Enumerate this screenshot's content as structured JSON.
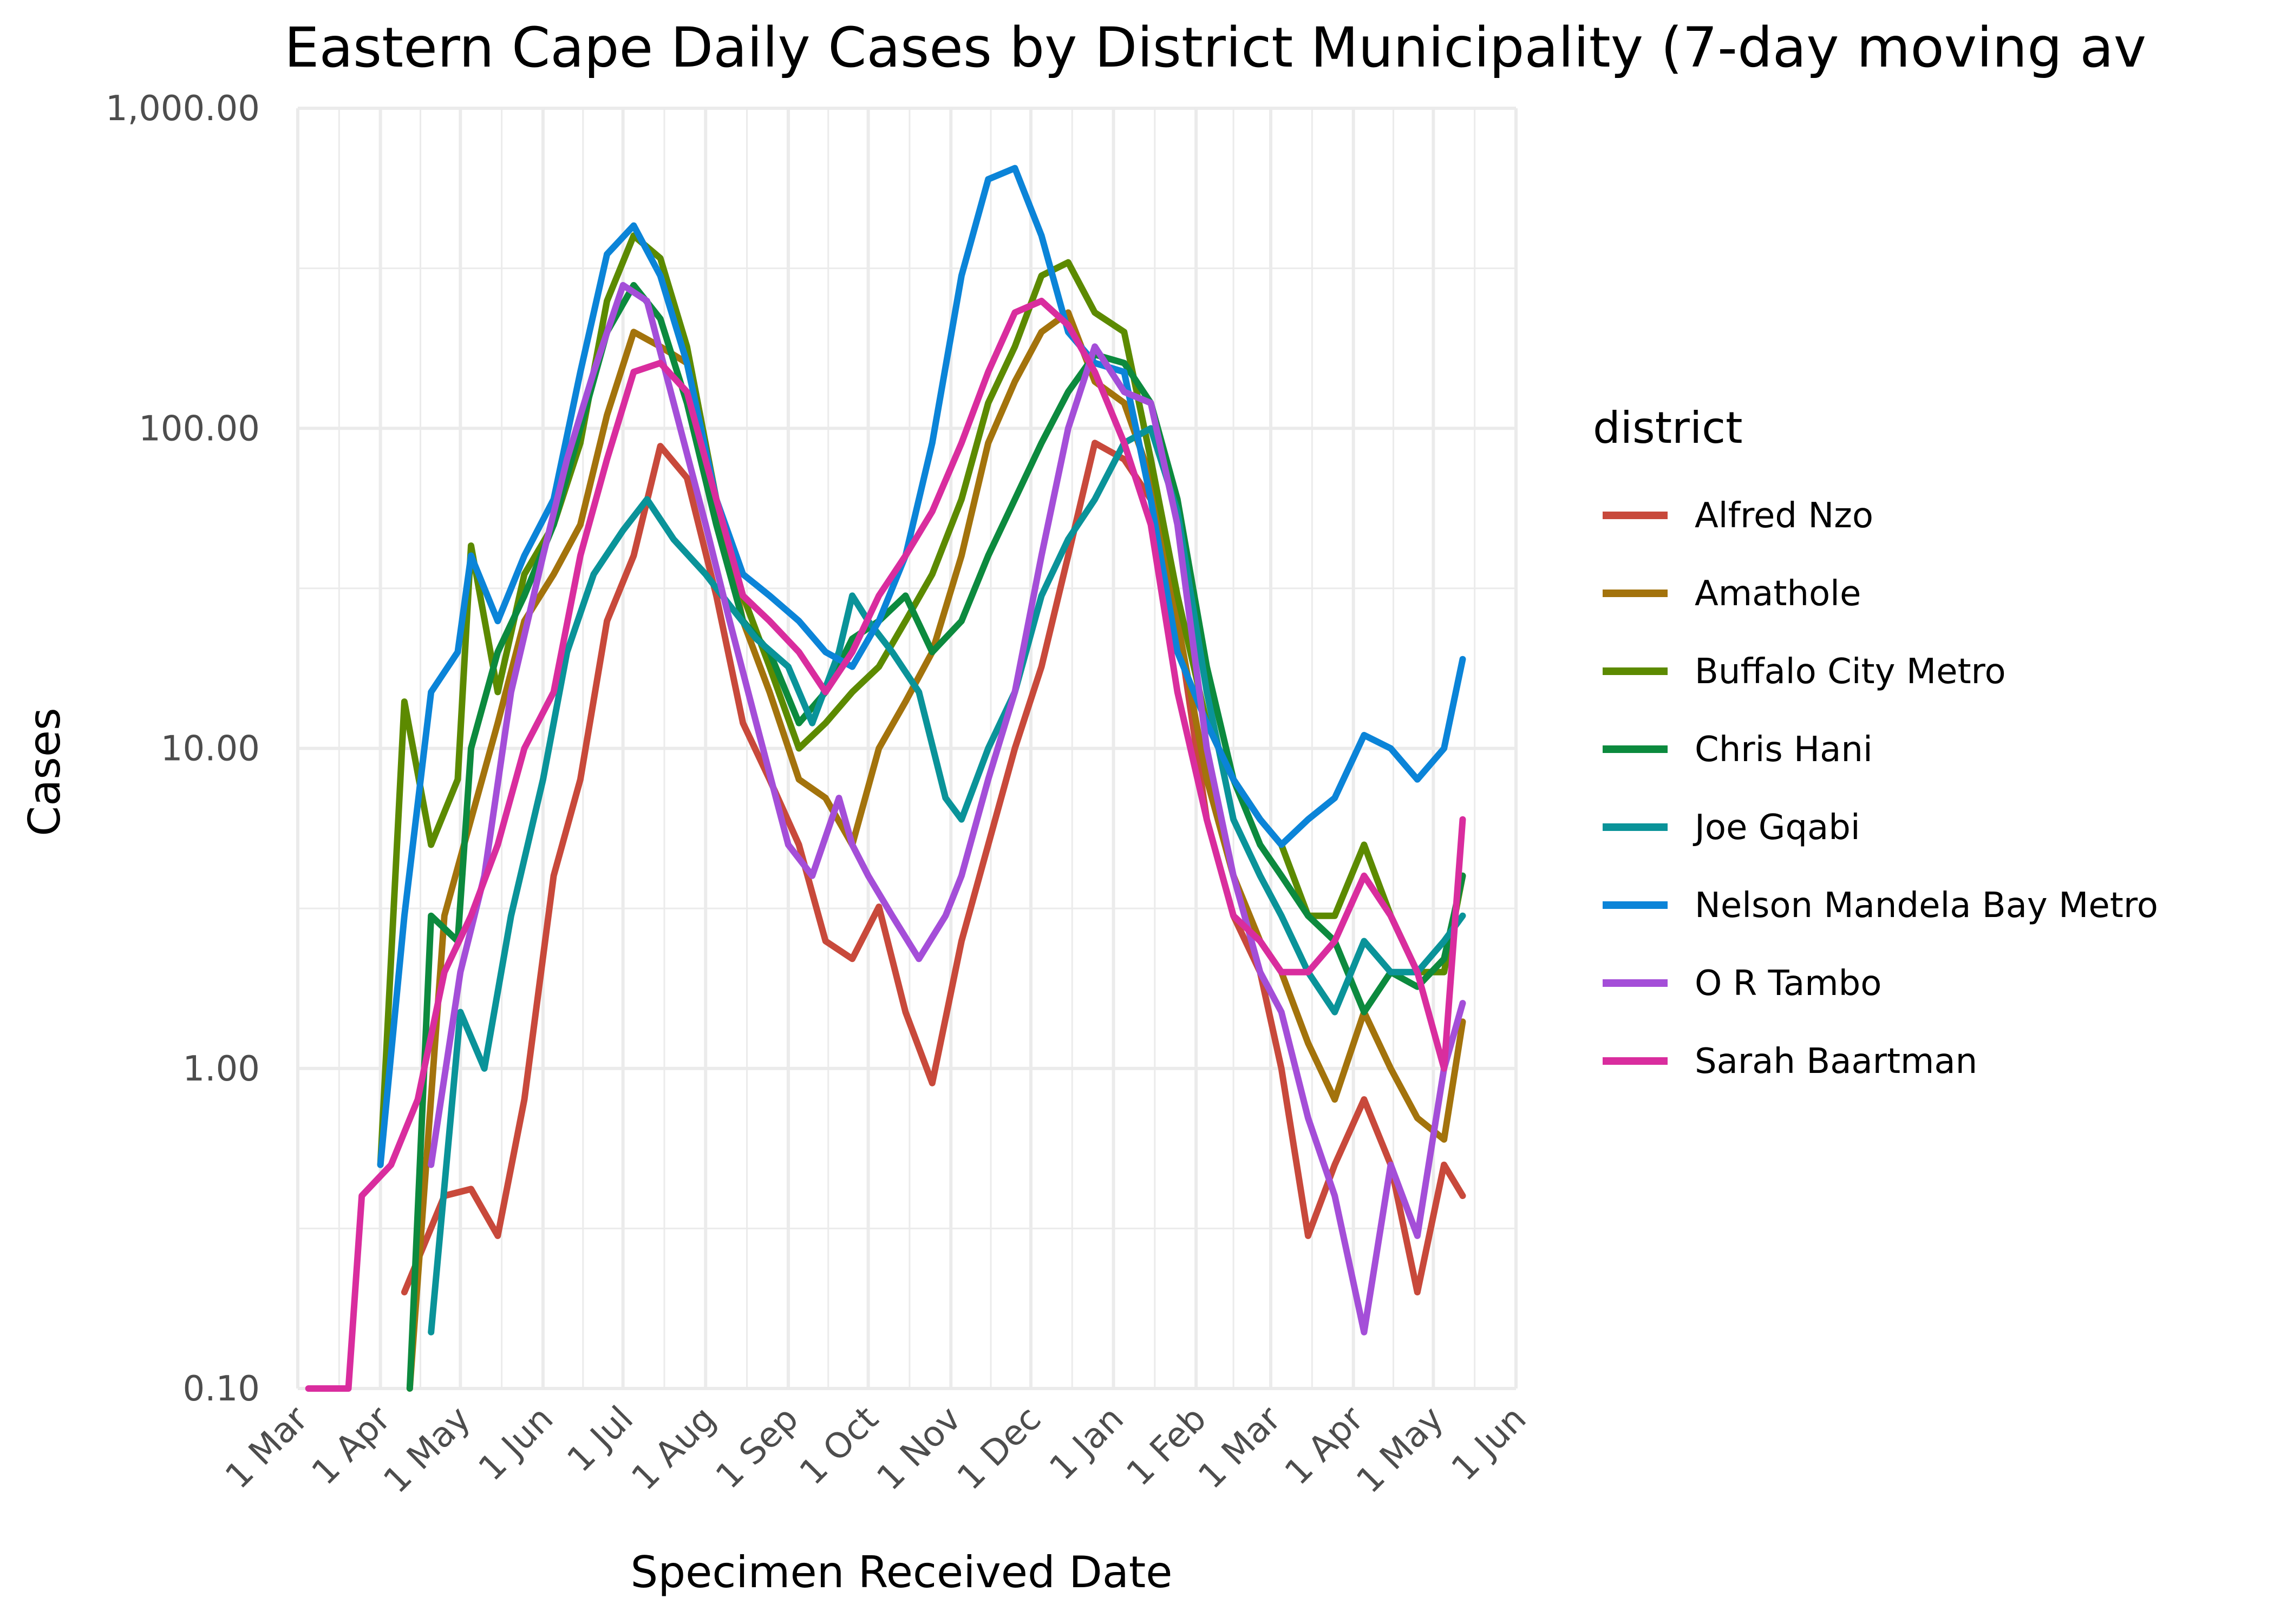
{
  "chart_data": {
    "type": "line",
    "title": "Eastern Cape Daily Cases by District Municipality (7-day moving av",
    "xlabel": "Specimen Received Date",
    "ylabel": "Cases",
    "y_scale": "log10",
    "ylim": [
      0.1,
      1000
    ],
    "x_start": "2020-03-01",
    "x_end": "2021-06-01",
    "x_ticks": [
      "1 Mar",
      "1 Apr",
      "1 May",
      "1 Jun",
      "1 Jul",
      "1 Aug",
      "1 Sep",
      "1 Oct",
      "1 Nov",
      "1 Dec",
      "1 Jan",
      "1 Feb",
      "1 Mar",
      "1 Apr",
      "1 May",
      "1 Jun"
    ],
    "x_tick_dates": [
      "2020-03-01",
      "2020-04-01",
      "2020-05-01",
      "2020-06-01",
      "2020-07-01",
      "2020-08-01",
      "2020-09-01",
      "2020-10-01",
      "2020-11-01",
      "2020-12-01",
      "2021-01-01",
      "2021-02-01",
      "2021-03-01",
      "2021-04-01",
      "2021-05-01",
      "2021-06-01"
    ],
    "y_ticks": [
      "0.10",
      "1.00",
      "10.00",
      "100.00",
      "1,000.00"
    ],
    "y_tick_values": [
      0.1,
      1,
      10,
      100,
      1000
    ],
    "grid": true,
    "legend_title": "district",
    "legend_position": "right",
    "series": [
      {
        "name": "Alfred Nzo",
        "color": "#c8493b",
        "x": [
          "2020-04-10",
          "2020-04-25",
          "2020-05-05",
          "2020-05-15",
          "2020-05-25",
          "2020-06-05",
          "2020-06-15",
          "2020-06-25",
          "2020-07-05",
          "2020-07-15",
          "2020-07-25",
          "2020-08-05",
          "2020-08-15",
          "2020-08-25",
          "2020-09-05",
          "2020-09-15",
          "2020-09-25",
          "2020-10-05",
          "2020-10-15",
          "2020-10-25",
          "2020-11-05",
          "2020-11-15",
          "2020-11-25",
          "2020-12-05",
          "2020-12-15",
          "2020-12-25",
          "2021-01-05",
          "2021-01-15",
          "2021-01-25",
          "2021-02-05",
          "2021-02-15",
          "2021-02-25",
          "2021-03-05",
          "2021-03-15",
          "2021-03-25",
          "2021-04-05",
          "2021-04-15",
          "2021-04-25",
          "2021-05-05",
          "2021-05-12"
        ],
        "y": [
          0.2,
          0.4,
          0.42,
          0.3,
          0.8,
          4,
          8,
          25,
          40,
          88,
          70,
          30,
          12,
          8,
          5,
          2.5,
          2.2,
          3.2,
          1.5,
          0.9,
          2.5,
          5,
          10,
          18,
          40,
          90,
          80,
          60,
          25,
          6,
          3,
          2,
          1,
          0.3,
          0.5,
          0.8,
          0.5,
          0.2,
          0.5,
          0.4
        ]
      },
      {
        "name": "Amathole",
        "color": "#a3730c",
        "x": [
          "2020-04-12",
          "2020-04-25",
          "2020-05-05",
          "2020-05-15",
          "2020-05-25",
          "2020-06-05",
          "2020-06-15",
          "2020-06-25",
          "2020-07-05",
          "2020-07-15",
          "2020-07-25",
          "2020-08-05",
          "2020-08-15",
          "2020-08-25",
          "2020-09-05",
          "2020-09-15",
          "2020-09-25",
          "2020-10-05",
          "2020-10-15",
          "2020-10-25",
          "2020-11-05",
          "2020-11-15",
          "2020-11-25",
          "2020-12-05",
          "2020-12-15",
          "2020-12-25",
          "2021-01-05",
          "2021-01-15",
          "2021-01-25",
          "2021-02-05",
          "2021-02-15",
          "2021-02-25",
          "2021-03-05",
          "2021-03-15",
          "2021-03-25",
          "2021-04-05",
          "2021-04-15",
          "2021-04-25",
          "2021-05-05",
          "2021-05-12"
        ],
        "y": [
          0.1,
          3,
          6,
          12,
          25,
          35,
          50,
          110,
          200,
          180,
          160,
          60,
          25,
          15,
          8,
          7,
          5,
          10,
          14,
          20,
          40,
          90,
          140,
          200,
          230,
          140,
          120,
          70,
          25,
          8,
          4,
          2.5,
          2,
          1.2,
          0.8,
          1.5,
          1,
          0.7,
          0.6,
          1.4
        ]
      },
      {
        "name": "Buffalo City Metro",
        "color": "#5c8a00",
        "x": [
          "2020-04-01",
          "2020-04-10",
          "2020-04-20",
          "2020-04-30",
          "2020-05-05",
          "2020-05-15",
          "2020-05-25",
          "2020-06-05",
          "2020-06-15",
          "2020-06-25",
          "2020-07-05",
          "2020-07-15",
          "2020-07-25",
          "2020-08-05",
          "2020-08-15",
          "2020-08-25",
          "2020-09-05",
          "2020-09-15",
          "2020-09-25",
          "2020-10-05",
          "2020-10-15",
          "2020-10-25",
          "2020-11-05",
          "2020-11-15",
          "2020-11-25",
          "2020-12-05",
          "2020-12-15",
          "2020-12-25",
          "2021-01-05",
          "2021-01-15",
          "2021-01-25",
          "2021-02-05",
          "2021-02-15",
          "2021-02-25",
          "2021-03-05",
          "2021-03-15",
          "2021-03-25",
          "2021-04-05",
          "2021-04-15",
          "2021-04-25",
          "2021-05-05",
          "2021-05-12"
        ],
        "y": [
          0.5,
          14,
          5,
          8,
          43,
          15,
          35,
          50,
          90,
          250,
          400,
          340,
          180,
          60,
          30,
          18,
          10,
          12,
          15,
          18,
          25,
          35,
          60,
          120,
          180,
          300,
          330,
          230,
          200,
          80,
          30,
          12,
          8,
          6,
          5,
          3,
          3,
          5,
          3,
          2,
          2,
          4
        ]
      },
      {
        "name": "Chris Hani",
        "color": "#0c8a3e",
        "x": [
          "2020-04-12",
          "2020-04-20",
          "2020-04-30",
          "2020-05-05",
          "2020-05-15",
          "2020-05-25",
          "2020-06-05",
          "2020-06-15",
          "2020-06-25",
          "2020-07-05",
          "2020-07-15",
          "2020-07-25",
          "2020-08-05",
          "2020-08-15",
          "2020-08-25",
          "2020-09-05",
          "2020-09-15",
          "2020-09-25",
          "2020-10-05",
          "2020-10-15",
          "2020-10-25",
          "2020-11-05",
          "2020-11-15",
          "2020-11-25",
          "2020-12-05",
          "2020-12-15",
          "2020-12-25",
          "2021-01-05",
          "2021-01-15",
          "2021-01-25",
          "2021-02-05",
          "2021-02-15",
          "2021-02-25",
          "2021-03-05",
          "2021-03-15",
          "2021-03-25",
          "2021-04-05",
          "2021-04-15",
          "2021-04-25",
          "2021-05-05",
          "2021-05-12"
        ],
        "y": [
          0.1,
          3,
          2.5,
          10,
          20,
          30,
          50,
          100,
          200,
          280,
          220,
          120,
          50,
          25,
          20,
          12,
          15,
          22,
          25,
          30,
          20,
          25,
          40,
          60,
          90,
          130,
          170,
          160,
          120,
          60,
          18,
          8,
          5,
          4,
          3,
          2.5,
          1.5,
          2,
          1.8,
          2.2,
          4
        ]
      },
      {
        "name": "Joe Gqabi",
        "color": "#0a9399",
        "x": [
          "2020-04-20",
          "2020-05-01",
          "2020-05-10",
          "2020-05-20",
          "2020-06-01",
          "2020-06-10",
          "2020-06-20",
          "2020-07-01",
          "2020-07-10",
          "2020-07-20",
          "2020-08-01",
          "2020-08-10",
          "2020-08-20",
          "2020-09-01",
          "2020-09-10",
          "2020-09-20",
          "2020-09-25",
          "2020-10-01",
          "2020-10-10",
          "2020-10-20",
          "2020-10-30",
          "2020-11-05",
          "2020-11-15",
          "2020-11-25",
          "2020-12-05",
          "2020-12-15",
          "2020-12-25",
          "2021-01-05",
          "2021-01-15",
          "2021-01-25",
          "2021-02-05",
          "2021-02-15",
          "2021-02-25",
          "2021-03-05",
          "2021-03-15",
          "2021-03-25",
          "2021-04-05",
          "2021-04-15",
          "2021-04-25",
          "2021-05-05",
          "2021-05-12"
        ],
        "y": [
          0.15,
          1.5,
          1,
          3,
          8,
          20,
          35,
          48,
          60,
          45,
          35,
          28,
          22,
          18,
          12,
          20,
          30,
          25,
          20,
          15,
          7,
          6,
          10,
          15,
          30,
          45,
          60,
          90,
          100,
          55,
          15,
          6,
          4,
          3,
          2,
          1.5,
          2.5,
          2,
          2,
          2.5,
          3
        ]
      },
      {
        "name": "Nelson Mandela Bay Metro",
        "color": "#0b84d8",
        "x": [
          "2020-04-01",
          "2020-04-10",
          "2020-04-20",
          "2020-04-30",
          "2020-05-05",
          "2020-05-15",
          "2020-05-25",
          "2020-06-05",
          "2020-06-15",
          "2020-06-25",
          "2020-07-05",
          "2020-07-15",
          "2020-07-25",
          "2020-08-05",
          "2020-08-15",
          "2020-08-25",
          "2020-09-05",
          "2020-09-15",
          "2020-09-25",
          "2020-10-05",
          "2020-10-15",
          "2020-10-25",
          "2020-11-05",
          "2020-11-15",
          "2020-11-25",
          "2020-12-05",
          "2020-12-15",
          "2020-12-25",
          "2021-01-05",
          "2021-01-15",
          "2021-01-25",
          "2021-02-05",
          "2021-02-15",
          "2021-02-25",
          "2021-03-05",
          "2021-03-15",
          "2021-03-25",
          "2021-04-05",
          "2021-04-15",
          "2021-04-25",
          "2021-05-05",
          "2021-05-12"
        ],
        "y": [
          0.5,
          3,
          15,
          20,
          40,
          25,
          40,
          60,
          150,
          350,
          430,
          300,
          160,
          60,
          35,
          30,
          25,
          20,
          18,
          25,
          40,
          90,
          300,
          600,
          650,
          400,
          200,
          160,
          150,
          60,
          20,
          12,
          8,
          6,
          5,
          6,
          7,
          11,
          10,
          8,
          10,
          19
        ]
      },
      {
        "name": "O R Tambo",
        "color": "#a44ed8",
        "x": [
          "2020-04-20",
          "2020-05-01",
          "2020-05-10",
          "2020-05-20",
          "2020-06-01",
          "2020-06-10",
          "2020-06-20",
          "2020-07-01",
          "2020-07-10",
          "2020-07-20",
          "2020-08-01",
          "2020-08-10",
          "2020-08-20",
          "2020-09-01",
          "2020-09-10",
          "2020-09-20",
          "2020-09-25",
          "2020-10-01",
          "2020-10-10",
          "2020-10-20",
          "2020-10-30",
          "2020-11-05",
          "2020-11-15",
          "2020-11-25",
          "2020-12-05",
          "2020-12-15",
          "2020-12-25",
          "2021-01-05",
          "2021-01-15",
          "2021-01-25",
          "2021-02-05",
          "2021-02-15",
          "2021-02-25",
          "2021-03-05",
          "2021-03-15",
          "2021-03-25",
          "2021-04-05",
          "2021-04-15",
          "2021-04-25",
          "2021-05-05",
          "2021-05-12"
        ],
        "y": [
          0.5,
          2,
          4,
          15,
          40,
          80,
          150,
          280,
          250,
          120,
          50,
          25,
          12,
          5,
          4,
          7,
          5,
          4,
          3,
          2.2,
          3,
          4,
          8,
          15,
          40,
          100,
          180,
          130,
          120,
          50,
          10,
          4,
          2,
          1.5,
          0.7,
          0.4,
          0.15,
          0.5,
          0.3,
          1,
          1.6
        ]
      },
      {
        "name": "Sarah Baartman",
        "color": "#d92d9e",
        "x": [
          "2020-03-05",
          "2020-03-20",
          "2020-03-25",
          "2020-04-05",
          "2020-04-15",
          "2020-04-25",
          "2020-05-05",
          "2020-05-15",
          "2020-05-25",
          "2020-06-05",
          "2020-06-15",
          "2020-06-25",
          "2020-07-05",
          "2020-07-15",
          "2020-07-25",
          "2020-08-05",
          "2020-08-15",
          "2020-08-25",
          "2020-09-05",
          "2020-09-15",
          "2020-09-25",
          "2020-10-05",
          "2020-10-15",
          "2020-10-25",
          "2020-11-05",
          "2020-11-15",
          "2020-11-25",
          "2020-12-05",
          "2020-12-15",
          "2020-12-25",
          "2021-01-05",
          "2021-01-15",
          "2021-01-25",
          "2021-02-05",
          "2021-02-15",
          "2021-02-25",
          "2021-03-05",
          "2021-03-15",
          "2021-03-25",
          "2021-04-05",
          "2021-04-15",
          "2021-04-25",
          "2021-05-05",
          "2021-05-12"
        ],
        "y": [
          0.1,
          0.1,
          0.4,
          0.5,
          0.8,
          2,
          3,
          5,
          10,
          15,
          40,
          80,
          150,
          160,
          130,
          60,
          30,
          25,
          20,
          15,
          20,
          30,
          40,
          55,
          90,
          150,
          230,
          250,
          210,
          150,
          90,
          50,
          15,
          6,
          3,
          2.5,
          2,
          2,
          2.5,
          4,
          3,
          2,
          1,
          6
        ]
      }
    ]
  }
}
